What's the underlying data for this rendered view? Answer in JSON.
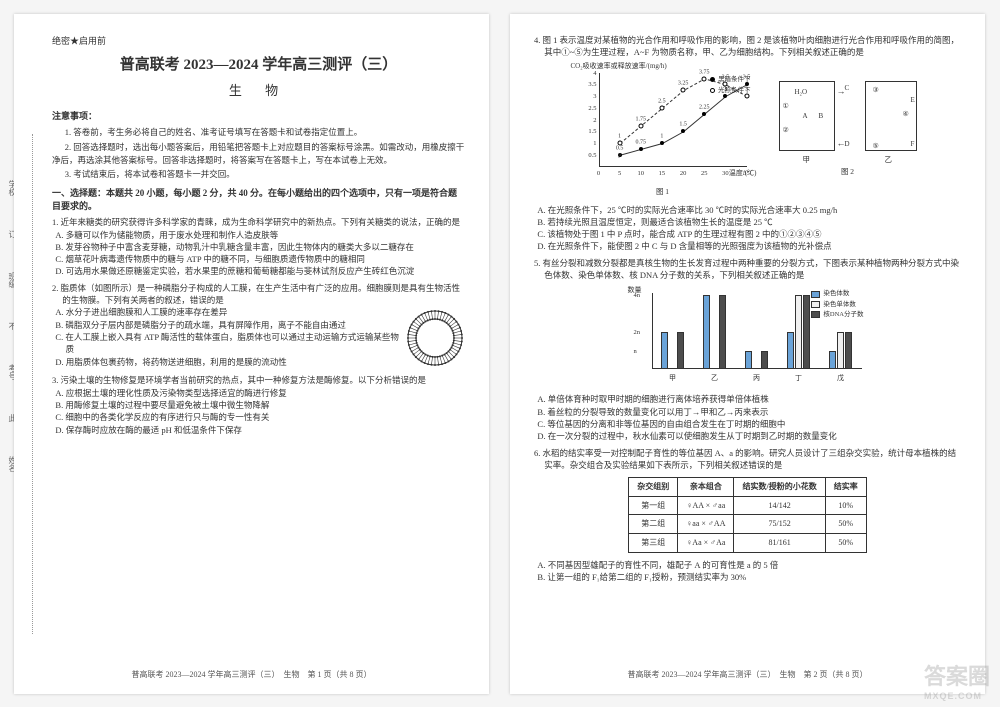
{
  "secret": "绝密★启用前",
  "title": "普高联考 2023—2024 学年高三测评（三）",
  "subject": "生 物",
  "notice_head": "注意事项：",
  "notices": [
    "1. 答卷前，考生务必将自己的姓名、准考证号填写在答题卡和试卷指定位置上。",
    "2. 回答选择题时，选出每小题答案后，用铅笔把答题卡上对应题目的答案标号涂黑。如需改动，用橡皮擦干净后，再选涂其他答案标号。回答非选择题时，将答案写在答题卡上，写在本试卷上无效。",
    "3. 考试结束后，将本试卷和答题卡一并交回。"
  ],
  "partI": "一、选择题：本题共 20 小题，每小题 2 分，共 40 分。在每小题给出的四个选项中，只有一项是符合题目要求的。",
  "q1": {
    "stem": "1. 近年来糖类的研究获得许多科学家的青睐，成为生命科学研究中的新热点。下列有关糖类的说法，正确的是",
    "A": "A. 多糖可以作为储能物质，用于废水处理和制作人造皮肤等",
    "B": "B. 发芽谷物种子中富含麦芽糖，动物乳汁中乳糖含量丰富，因此生物体内的糖类大多以二糖存在",
    "C": "C. 烟草花叶病毒遗传物质中的糖与 ATP 中的糖不同，与细胞质遗传物质中的糖相同",
    "D": "D. 可选用水果做还原糖鉴定实验，若水果里的蔗糖和葡萄糖都能与斐林试剂反应产生砖红色沉淀"
  },
  "q2": {
    "stem": "2. 脂质体（如图所示）是一种磷脂分子构成的人工膜，在生产生活中有广泛的应用。细胞膜则是具有生物活性的生物膜。下列有关两者的叙述，错误的是",
    "A": "A. 水分子进出细胞膜和人工膜的速率存在差异",
    "B": "B. 磷脂双分子层内部是磷脂分子的疏水端，具有屏障作用，离子不能自由通过",
    "C": "C. 在人工膜上嵌入具有 ATP 酶活性的载体蛋白，脂质体也可以通过主动运输方式运输某些物质",
    "D": "D. 用脂质体包裹药物，将药物送进细胞，利用的是膜的流动性"
  },
  "q3": {
    "stem": "3. 污染土壤的生物修复是环境学者当前研究的热点，其中一种修复方法是酶修复。以下分析错误的是",
    "A": "A. 应根据土壤的理化性质及污染物类型选择适宜的酶进行修复",
    "B": "B. 用酶修复土壤的过程中要尽量避免被土壤中微生物降解",
    "C": "C. 细胞中的各类化学反应的有序进行只与酶的专一性有关",
    "D": "D. 保存酶时应放在酶的最适 pH 和低温条件下保存"
  },
  "q4": {
    "stem": "4. 图 1 表示温度对某植物的光合作用和呼吸作用的影响，图 2 是该植物叶肉细胞进行光合作用和呼吸作用的简图，其中①~⑤为生理过程，A~F 为物质名称，甲、乙为细胞结构。下列相关叙述正确的是",
    "A": "A. 在光照条件下，25 ℃时的实际光合速率比 30 ℃时的实际光合速率大 0.25 mg/h",
    "B": "B. 若持续光照且温度恒定，则最适合该植物生长的温度是 25 ℃",
    "C": "C. 该植物处于图 1 中 P 点时，能合成 ATP 的生理过程有图 2 中的①②③④⑤",
    "D": "D. 在光照条件下，能使图 2 中 C 与 D 含量相等的光照强度为该植物的光补偿点"
  },
  "q5": {
    "stem": "5. 有丝分裂和减数分裂都是真核生物的生长发育过程中两种重要的分裂方式，下图表示某种植物两种分裂方式中染色体数、染色单体数、核 DNA 分子数的关系，下列相关叙述正确的是",
    "A": "A. 单倍体育种时取甲时期的细胞进行离体培养获得单倍体植株",
    "B": "B. 着丝粒的分裂导致的数量变化可以用丁→甲和乙→丙来表示",
    "C": "C. 等位基因的分离和非等位基因的自由组合发生在丁时期的细胞中",
    "D": "D. 在一次分裂的过程中，秋水仙素可以使细胞发生从丁时期到乙时期的数量变化"
  },
  "q6": {
    "stem": "6. 水稻的结实率受一对控制配子育性的等位基因 A、a 的影响。研究人员设计了三组杂交实验，统计母本植株的结实率。杂交组合及实验结果如下表所示，下列相关叙述错误的是",
    "A": "A. 不同基因型雄配子的育性不同，雄配子 A 的可育性是 a 的 5 倍",
    "B": "B. 让第一组的 F₁给第二组的 F₁授粉，预测结实率为 30%"
  },
  "chart1": {
    "type": "line-scatter",
    "ylabel": "CO₂吸收速率或释放速率/(mg/h)",
    "xlabel": "温度/(℃)",
    "yticks": [
      0.5,
      1,
      1.5,
      2,
      2.5,
      3,
      3.5,
      4
    ],
    "xticks": [
      0,
      5,
      10,
      15,
      20,
      25,
      30,
      35
    ],
    "ylim": [
      0,
      4
    ],
    "xlim": [
      0,
      35
    ],
    "series_dark_label": "黑暗条件下",
    "series_light_label": "光照条件下",
    "dark_points": [
      [
        5,
        0.5
      ],
      [
        10,
        0.75
      ],
      [
        15,
        1
      ],
      [
        20,
        1.5
      ],
      [
        25,
        2.25
      ],
      [
        30,
        3
      ],
      [
        35,
        3.5
      ]
    ],
    "light_points": [
      [
        5,
        1
      ],
      [
        10,
        1.75
      ],
      [
        15,
        2.5
      ],
      [
        20,
        3.25
      ],
      [
        25,
        3.75
      ],
      [
        30,
        3.5
      ],
      [
        35,
        3
      ]
    ],
    "point_labels_dark": [
      "0.5",
      "0.75",
      "1",
      "1.5",
      "2.25",
      "3",
      "3.5"
    ],
    "point_labels_light": [
      "1",
      "1.75",
      "2.5",
      "3.25",
      "3.75",
      "3.5",
      "3"
    ],
    "P_label": "P",
    "caption": "图 1"
  },
  "chart2": {
    "caption": "图 2",
    "labels": {
      "H2O": "H₂O",
      "A": "A",
      "B": "B",
      "C": "C",
      "D": "D",
      "E": "E",
      "F": "F",
      "jia": "甲",
      "yi": "乙",
      "n1": "①",
      "n2": "②",
      "n3": "③",
      "n4": "④",
      "n5": "⑤"
    }
  },
  "bar_chart": {
    "type": "grouped-bar",
    "ylabel": "数量",
    "yticks": [
      "n",
      "2n",
      "4n"
    ],
    "groups": [
      "甲",
      "乙",
      "丙",
      "丁",
      "戊"
    ],
    "legend": [
      "染色体数",
      "染色单体数",
      "核DNA分子数"
    ],
    "colors": [
      "#6aa3d8",
      "#f0f0f0",
      "#4d4d4d"
    ],
    "values": {
      "甲": [
        2,
        0,
        2
      ],
      "乙": [
        4,
        0,
        4
      ],
      "丙": [
        1,
        0,
        1
      ],
      "丁": [
        2,
        4,
        4
      ],
      "戊": [
        1,
        2,
        2
      ]
    },
    "max": 4
  },
  "table": {
    "headers": [
      "杂交组别",
      "亲本组合",
      "结实数/授粉的小花数",
      "结实率"
    ],
    "rows": [
      [
        "第一组",
        "♀AA × ♂aa",
        "14/142",
        "10%"
      ],
      [
        "第二组",
        "♀aa × ♂AA",
        "75/152",
        "50%"
      ],
      [
        "第三组",
        "♀Aa × ♂Aa",
        "81/161",
        "50%"
      ]
    ]
  },
  "footer_left": "普高联考 2023—2024 学年高三测评（三）　生物　第 1 页（共 8 页）",
  "footer_right": "普高联考 2023—2024 学年高三测评（三）　生物　第 2 页（共 8 页）",
  "side_tabs": [
    "学校",
    "订",
    "班级",
    "不",
    "考号",
    "此",
    "姓名"
  ],
  "watermark": "答案圈",
  "watermark_sub": "MXQE.COM"
}
